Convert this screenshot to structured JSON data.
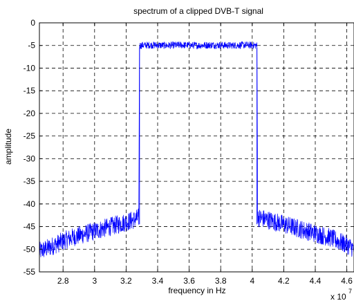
{
  "chart_data": {
    "type": "line",
    "title": "spectrum of a clipped DVB-T signal",
    "xlabel": "frequency in Hz",
    "ylabel": "amplitude",
    "x_scale_note": "x 10",
    "x_scale_exponent": "7",
    "xlim": [
      2.65,
      4.65
    ],
    "ylim": [
      -55,
      0
    ],
    "x_ticks": [
      2.8,
      3.0,
      3.2,
      3.4,
      3.6,
      3.8,
      4.0,
      4.2,
      4.4,
      4.6
    ],
    "x_tick_labels": [
      "2.8",
      "3",
      "3.2",
      "3.4",
      "3.6",
      "3.8",
      "4",
      "4.2",
      "4.4",
      "4.6"
    ],
    "y_ticks": [
      0,
      -5,
      -10,
      -15,
      -20,
      -25,
      -30,
      -35,
      -40,
      -45,
      -50,
      -55
    ],
    "y_tick_labels": [
      "0",
      "-5",
      "-10",
      "-15",
      "-20",
      "-25",
      "-30",
      "-35",
      "-40",
      "-45",
      "-50",
      "-55"
    ],
    "grid": true,
    "color": "#0000ff",
    "series": [
      {
        "points": [
          [
            2.65,
            -50.5
          ],
          [
            2.7,
            -49.8
          ],
          [
            2.75,
            -49.0
          ],
          [
            2.8,
            -48.2
          ],
          [
            2.85,
            -47.5
          ],
          [
            2.9,
            -47.0
          ],
          [
            2.95,
            -46.5
          ],
          [
            3.0,
            -46.0
          ],
          [
            3.05,
            -45.5
          ],
          [
            3.1,
            -45.0
          ],
          [
            3.15,
            -44.5
          ],
          [
            3.2,
            -44.0
          ],
          [
            3.25,
            -43.5
          ],
          [
            3.28,
            -43.0
          ],
          [
            3.285,
            -5.0
          ],
          [
            3.35,
            -4.9
          ],
          [
            3.45,
            -5.0
          ],
          [
            3.55,
            -4.9
          ],
          [
            3.65,
            -5.0
          ],
          [
            3.75,
            -4.9
          ],
          [
            3.85,
            -5.0
          ],
          [
            3.95,
            -4.9
          ],
          [
            4.03,
            -5.0
          ],
          [
            4.035,
            -43.0
          ],
          [
            4.1,
            -43.5
          ],
          [
            4.15,
            -44.0
          ],
          [
            4.2,
            -44.5
          ],
          [
            4.25,
            -45.0
          ],
          [
            4.3,
            -45.5
          ],
          [
            4.35,
            -46.0
          ],
          [
            4.4,
            -46.5
          ],
          [
            4.45,
            -47.0
          ],
          [
            4.5,
            -47.5
          ],
          [
            4.55,
            -48.3
          ],
          [
            4.6,
            -49.0
          ],
          [
            4.65,
            -50.0
          ]
        ]
      }
    ]
  }
}
